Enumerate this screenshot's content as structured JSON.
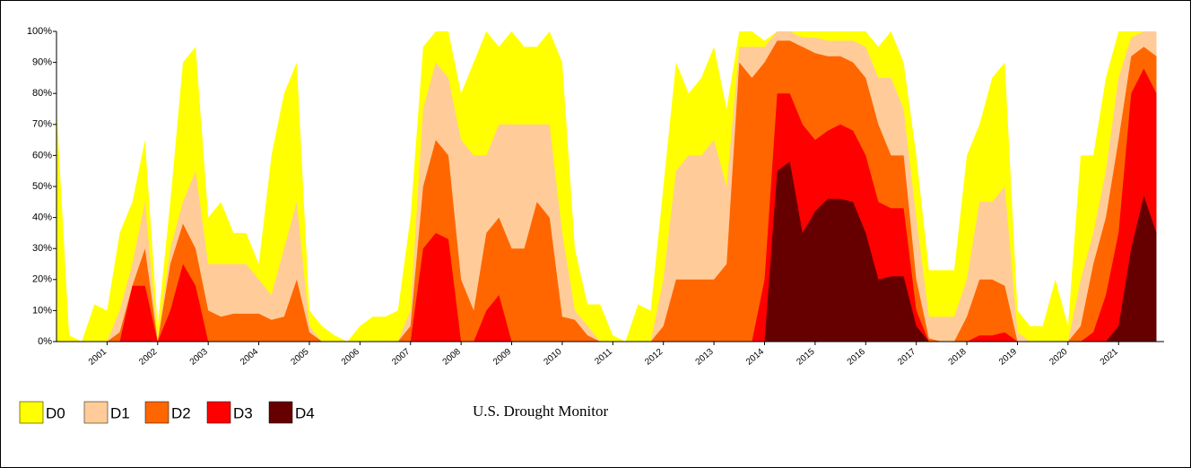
{
  "chart_data": {
    "type": "area",
    "title": "U.S. Drought Monitor",
    "x": [
      2000,
      2000.25,
      2000.5,
      2000.75,
      2001,
      2001.25,
      2001.5,
      2001.75,
      2002,
      2002.25,
      2002.5,
      2002.75,
      2003,
      2003.25,
      2003.5,
      2003.75,
      2004,
      2004.25,
      2004.5,
      2004.75,
      2005,
      2005.25,
      2005.5,
      2005.75,
      2006,
      2006.25,
      2006.5,
      2006.75,
      2007,
      2007.25,
      2007.5,
      2007.75,
      2008,
      2008.25,
      2008.5,
      2008.75,
      2009,
      2009.25,
      2009.5,
      2009.75,
      2010,
      2010.25,
      2010.5,
      2010.75,
      2011,
      2011.25,
      2011.5,
      2011.75,
      2012,
      2012.25,
      2012.5,
      2012.75,
      2013,
      2013.25,
      2013.5,
      2013.75,
      2014,
      2014.25,
      2014.5,
      2014.75,
      2015,
      2015.25,
      2015.5,
      2015.75,
      2016,
      2016.25,
      2016.5,
      2016.75,
      2017,
      2017.25,
      2017.5,
      2017.75,
      2018,
      2018.25,
      2018.5,
      2018.75,
      2019,
      2019.25,
      2019.5,
      2019.75,
      2020,
      2020.25,
      2020.5,
      2020.75,
      2021,
      2021.25,
      2021.5,
      2021.75
    ],
    "series": [
      {
        "name": "D0",
        "color": "#ffff00",
        "values": [
          75,
          2,
          0,
          12,
          10,
          35,
          45,
          65,
          5,
          45,
          90,
          95,
          40,
          45,
          35,
          35,
          25,
          60,
          80,
          90,
          10,
          5,
          2,
          0,
          5,
          8,
          8,
          10,
          40,
          95,
          100,
          100,
          80,
          90,
          100,
          95,
          100,
          95,
          95,
          100,
          90,
          30,
          12,
          12,
          2,
          0,
          12,
          10,
          50,
          90,
          80,
          85,
          95,
          75,
          100,
          100,
          97,
          100,
          100,
          100,
          100,
          100,
          100,
          100,
          100,
          95,
          100,
          90,
          60,
          23,
          23,
          23,
          60,
          70,
          85,
          90,
          10,
          5,
          5,
          20,
          5,
          60,
          60,
          85,
          100,
          100,
          100,
          100
        ]
      },
      {
        "name": "D1",
        "color": "#ffcc99",
        "values": [
          0,
          0,
          0,
          0,
          0,
          10,
          25,
          45,
          0,
          30,
          45,
          55,
          25,
          25,
          25,
          25,
          20,
          15,
          30,
          45,
          5,
          0,
          0,
          0,
          0,
          0,
          0,
          0,
          10,
          75,
          90,
          85,
          65,
          60,
          60,
          70,
          70,
          70,
          70,
          70,
          35,
          10,
          5,
          0,
          0,
          0,
          0,
          0,
          20,
          55,
          60,
          60,
          65,
          50,
          95,
          95,
          95,
          100,
          100,
          98,
          98,
          97,
          97,
          97,
          95,
          85,
          85,
          75,
          40,
          8,
          8,
          8,
          20,
          45,
          45,
          50,
          3,
          0,
          0,
          0,
          0,
          20,
          35,
          55,
          85,
          98,
          100,
          100
        ]
      },
      {
        "name": "D2",
        "color": "#ff6600",
        "values": [
          0,
          0,
          0,
          0,
          0,
          3,
          18,
          30,
          0,
          25,
          38,
          30,
          10,
          8,
          9,
          9,
          9,
          7,
          8,
          20,
          3,
          0,
          0,
          0,
          0,
          0,
          0,
          0,
          5,
          50,
          65,
          60,
          20,
          10,
          35,
          40,
          30,
          30,
          45,
          40,
          8,
          7,
          2,
          0,
          0,
          0,
          0,
          0,
          5,
          20,
          20,
          20,
          20,
          25,
          90,
          85,
          90,
          97,
          97,
          95,
          93,
          92,
          92,
          90,
          85,
          70,
          60,
          60,
          20,
          1,
          0,
          0,
          8,
          20,
          20,
          18,
          0,
          0,
          0,
          0,
          0,
          5,
          25,
          40,
          65,
          92,
          95,
          92
        ]
      },
      {
        "name": "D3",
        "color": "#ff0000",
        "values": [
          0,
          0,
          0,
          0,
          0,
          0,
          18,
          18,
          0,
          10,
          25,
          18,
          0,
          0,
          0,
          0,
          0,
          0,
          0,
          0,
          0,
          0,
          0,
          0,
          0,
          0,
          0,
          0,
          0,
          30,
          35,
          33,
          0,
          0,
          10,
          15,
          0,
          0,
          0,
          0,
          0,
          0,
          0,
          0,
          0,
          0,
          0,
          0,
          0,
          0,
          0,
          0,
          0,
          0,
          0,
          0,
          20,
          80,
          80,
          70,
          65,
          68,
          70,
          68,
          60,
          45,
          43,
          43,
          10,
          0,
          0,
          0,
          0,
          2,
          2,
          3,
          0,
          0,
          0,
          0,
          0,
          0,
          3,
          15,
          35,
          80,
          88,
          80
        ]
      },
      {
        "name": "D4",
        "color": "#660000",
        "values": [
          0,
          0,
          0,
          0,
          0,
          0,
          0,
          0,
          0,
          0,
          0,
          0,
          0,
          0,
          0,
          0,
          0,
          0,
          0,
          0,
          0,
          0,
          0,
          0,
          0,
          0,
          0,
          0,
          0,
          0,
          0,
          0,
          0,
          0,
          0,
          0,
          0,
          0,
          0,
          0,
          0,
          0,
          0,
          0,
          0,
          0,
          0,
          0,
          0,
          0,
          0,
          0,
          0,
          0,
          0,
          0,
          0,
          55,
          58,
          35,
          42,
          46,
          46,
          45,
          35,
          20,
          21,
          21,
          5,
          0,
          0,
          0,
          0,
          0,
          0,
          0,
          0,
          0,
          0,
          0,
          0,
          0,
          0,
          0,
          5,
          30,
          47,
          35
        ]
      }
    ],
    "xlim": [
      2000,
      2021.9
    ],
    "xticks": [
      2001,
      2002,
      2003,
      2004,
      2005,
      2006,
      2007,
      2008,
      2009,
      2010,
      2011,
      2012,
      2013,
      2014,
      2015,
      2016,
      2017,
      2018,
      2019,
      2020,
      2021
    ],
    "ylim": [
      0,
      100
    ],
    "yticks": [
      {
        "value": 0,
        "label": "0%"
      },
      {
        "value": 10,
        "label": "10%"
      },
      {
        "value": 20,
        "label": "20%"
      },
      {
        "value": 30,
        "label": "30%"
      },
      {
        "value": 40,
        "label": "40%"
      },
      {
        "value": 50,
        "label": "50%"
      },
      {
        "value": 60,
        "label": "60%"
      },
      {
        "value": 70,
        "label": "70%"
      },
      {
        "value": 80,
        "label": "80%"
      },
      {
        "value": 90,
        "label": "90%"
      },
      {
        "value": 100,
        "label": "100%"
      }
    ],
    "grid": false,
    "legend": "bottom-left"
  }
}
